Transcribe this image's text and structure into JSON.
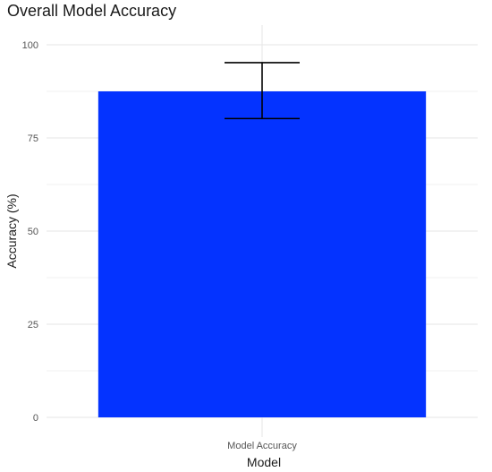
{
  "chart_data": {
    "type": "bar",
    "title": "Overall Model Accuracy",
    "xlabel": "Model",
    "ylabel": "Accuracy (%)",
    "categories": [
      "Model Accuracy"
    ],
    "values": [
      87.5
    ],
    "error_bars": [
      {
        "lower": 80.2,
        "upper": 95.2
      }
    ],
    "ylim": [
      0,
      100
    ],
    "yticks": [
      0,
      25,
      50,
      75,
      100
    ],
    "grid": true,
    "bar_color": "#0433ff"
  }
}
